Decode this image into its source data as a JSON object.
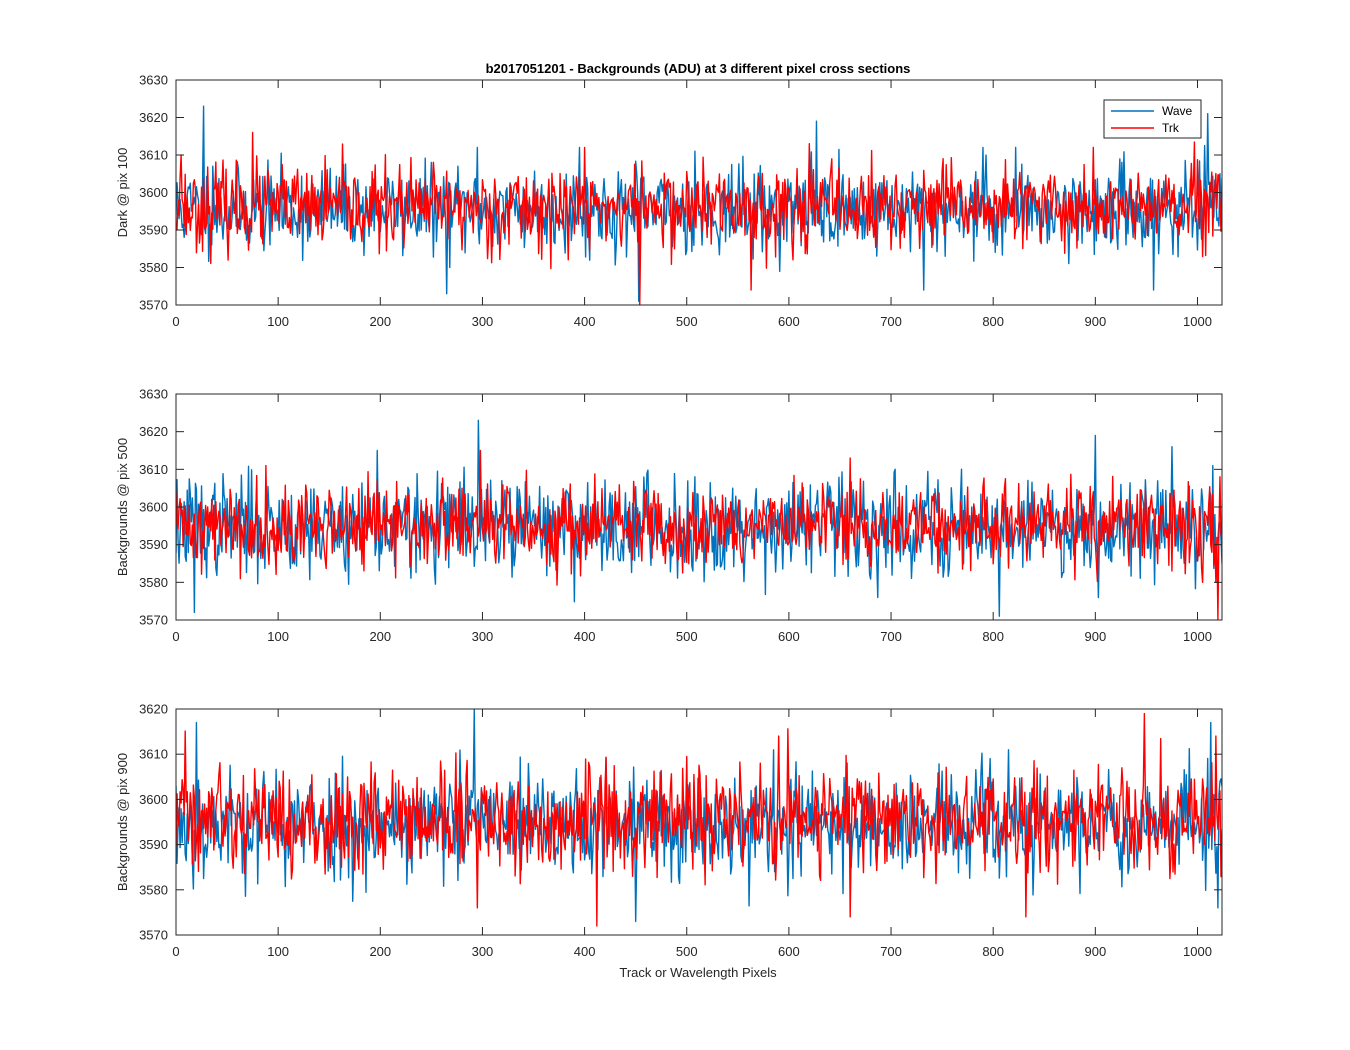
{
  "chart_data": [
    {
      "type": "line",
      "title": "b2017051201 - Backgrounds (ADU) at 3 different pixel cross sections",
      "xlabel": "",
      "ylabel": "Dark @ pix 100",
      "xlim": [
        0,
        1024
      ],
      "ylim": [
        3570,
        3630
      ],
      "xticks": [
        0,
        100,
        200,
        300,
        400,
        500,
        600,
        700,
        800,
        900,
        1000
      ],
      "yticks": [
        3570,
        3580,
        3590,
        3600,
        3610,
        3620,
        3630
      ],
      "legend": {
        "position": "top-right",
        "entries": [
          "Wave",
          "Trk"
        ]
      },
      "grid": false,
      "series": [
        {
          "name": "Wave",
          "color": "#0072BD",
          "mean": 3595.5,
          "spread": 5.5,
          "seed": 11,
          "spikes": [
            [
              27,
              3623
            ],
            [
              36,
              3607
            ],
            [
              265,
              3573
            ],
            [
              295,
              3612
            ],
            [
              395,
              3612
            ],
            [
              453,
              3571
            ],
            [
              508,
              3611
            ],
            [
              620,
              3612
            ],
            [
              627,
              3619
            ],
            [
              732,
              3574
            ],
            [
              790,
              3612
            ],
            [
              822,
              3612
            ],
            [
              957,
              3574
            ],
            [
              1010,
              3621
            ]
          ]
        },
        {
          "name": "Trk",
          "color": "#FF0000",
          "mean": 3596.0,
          "spread": 5.5,
          "seed": 23,
          "spikes": [
            [
              5,
              3610
            ],
            [
              75,
              3616
            ],
            [
              400,
              3612
            ],
            [
              454,
              3570
            ],
            [
              563,
              3574
            ],
            [
              620,
              3613
            ],
            [
              898,
              3612
            ]
          ]
        }
      ]
    },
    {
      "type": "line",
      "title": "",
      "xlabel": "",
      "ylabel": "Backgrounds @ pix 500",
      "xlim": [
        0,
        1024
      ],
      "ylim": [
        3570,
        3630
      ],
      "xticks": [
        0,
        100,
        200,
        300,
        400,
        500,
        600,
        700,
        800,
        900,
        1000
      ],
      "yticks": [
        3570,
        3580,
        3590,
        3600,
        3610,
        3620,
        3630
      ],
      "grid": false,
      "series": [
        {
          "name": "Wave",
          "color": "#0072BD",
          "mean": 3595.0,
          "spread": 6.5,
          "seed": 37,
          "spikes": [
            [
              18,
              3572
            ],
            [
              296,
              3623
            ],
            [
              197,
              3615
            ],
            [
              806,
              3571
            ],
            [
              900,
              3619
            ],
            [
              975,
              3616
            ],
            [
              1015,
              3611
            ]
          ]
        },
        {
          "name": "Trk",
          "color": "#FF0000",
          "mean": 3595.0,
          "spread": 5.5,
          "seed": 41,
          "spikes": [
            [
              88,
              3611
            ],
            [
              298,
              3615
            ],
            [
              660,
              3613
            ],
            [
              1005,
              3580
            ],
            [
              1018,
              3580
            ],
            [
              1020,
              3570
            ],
            [
              1022,
              3608
            ]
          ]
        }
      ]
    },
    {
      "type": "line",
      "title": "",
      "xlabel": "Track or Wavelength Pixels",
      "ylabel": "Backgrounds @ pix 900",
      "xlim": [
        0,
        1024
      ],
      "ylim": [
        3570,
        3620
      ],
      "xticks": [
        0,
        100,
        200,
        300,
        400,
        500,
        600,
        700,
        800,
        900,
        1000
      ],
      "yticks": [
        3570,
        3580,
        3590,
        3600,
        3610,
        3620
      ],
      "grid": false,
      "series": [
        {
          "name": "Wave",
          "color": "#0072BD",
          "mean": 3594.5,
          "spread": 6.0,
          "seed": 53,
          "spikes": [
            [
              20,
              3617
            ],
            [
              292,
              3620
            ],
            [
              450,
              3573
            ],
            [
              1013,
              3617
            ],
            [
              1020,
              3576
            ]
          ]
        },
        {
          "name": "Trk",
          "color": "#FF0000",
          "mean": 3595.5,
          "spread": 5.5,
          "seed": 59,
          "spikes": [
            [
              295,
              3576
            ],
            [
              412,
              3572
            ],
            [
              590,
              3614
            ],
            [
              660,
              3574
            ],
            [
              832,
              3574
            ],
            [
              948,
              3619
            ],
            [
              1018,
              3614
            ]
          ]
        }
      ]
    }
  ]
}
